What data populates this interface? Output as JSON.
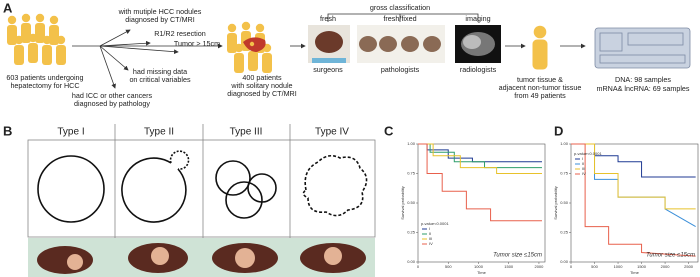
{
  "panel_a": {
    "label": "A",
    "start": [
      "603 patients undergoing",
      "hepatectomy for HCC"
    ],
    "exclusions": [
      [
        "with mutiple HCC nodules",
        "diagnosed by CT/MRI"
      ],
      [
        "R1/R2 resection"
      ],
      [
        "Tumor > 15cm"
      ],
      [
        "had missing data",
        "on critical variables"
      ],
      [
        "had ICC or other cancers",
        "diagnosed by pathology"
      ]
    ],
    "cohort": [
      "400 patients",
      "with solitary nodule",
      "diagnosed by CT/MRI"
    ],
    "classification": "gross classification",
    "sources": [
      {
        "title": "fresh",
        "reader": "surgeons"
      },
      {
        "title": "fresh/fixed",
        "reader": "pathologists"
      },
      {
        "title": "imaging",
        "reader": "radiologists"
      }
    ],
    "tissue": [
      "tumor tissue &",
      "adjacent non-tumor tissue",
      "from 49 patients"
    ],
    "samples": [
      "DNA: 98 samples",
      "mRNA& lncRNA: 69 samples"
    ]
  },
  "panel_b": {
    "label": "B",
    "types": [
      "Type I",
      "Type II",
      "Type III",
      "Type IV"
    ]
  },
  "chart_data": [
    {
      "type": "line",
      "label": "C",
      "ylabel": "Survival probability",
      "xlabel": "Time",
      "annotation": "p-value<0.0001",
      "note": "Tumor size ≤15cm",
      "xlim": [
        0,
        2100
      ],
      "ylim": [
        0,
        1
      ],
      "xticks": [
        0,
        500,
        1000,
        1500,
        2000
      ],
      "yticks": [
        {
          "value": 0,
          "label": "0.00"
        },
        {
          "value": 0.25,
          "label": "0.25"
        },
        {
          "value": 0.5,
          "label": "0.50"
        },
        {
          "value": 0.75,
          "label": "0.75"
        },
        {
          "value": 1,
          "label": "1.00"
        }
      ],
      "series": [
        {
          "name": "I",
          "color": "#1f3a93",
          "x": [
            0,
            150,
            150,
            500,
            500,
            900,
            900,
            2050
          ],
          "values": [
            1,
            1,
            0.95,
            0.95,
            0.88,
            0.88,
            0.85,
            0.85
          ]
        },
        {
          "name": "II",
          "color": "#2e9e6b",
          "x": [
            0,
            200,
            200,
            600,
            600,
            1100,
            1100,
            2050
          ],
          "values": [
            1,
            1,
            0.93,
            0.93,
            0.85,
            0.85,
            0.8,
            0.8
          ]
        },
        {
          "name": "III",
          "color": "#e8c22b",
          "x": [
            0,
            250,
            250,
            700,
            700,
            1300,
            1300,
            2050
          ],
          "values": [
            1,
            1,
            0.9,
            0.9,
            0.8,
            0.8,
            0.75,
            0.75
          ]
        },
        {
          "name": "IV",
          "color": "#e8604c",
          "x": [
            0,
            150,
            150,
            400,
            400,
            800,
            800,
            1200,
            1200,
            2050
          ],
          "values": [
            1,
            1,
            0.75,
            0.75,
            0.6,
            0.6,
            0.45,
            0.45,
            0.35,
            0.35
          ]
        }
      ]
    },
    {
      "type": "line",
      "label": "D",
      "ylabel": "Survival probability",
      "xlabel": "Time",
      "annotation": "p-value<0.0001",
      "note": "Tumor size ≤15cm",
      "xlim": [
        0,
        2700
      ],
      "ylim": [
        0,
        1
      ],
      "xticks": [
        0,
        500,
        1000,
        1500,
        2000,
        2500
      ],
      "yticks": [
        {
          "value": 0,
          "label": "0.00"
        },
        {
          "value": 0.25,
          "label": "0.25"
        },
        {
          "value": 0.5,
          "label": "0.50"
        },
        {
          "value": 0.75,
          "label": "0.75"
        },
        {
          "value": 1,
          "label": "1.00"
        }
      ],
      "series": [
        {
          "name": "I",
          "color": "#1f3a93",
          "x": [
            0,
            500,
            500,
            1000,
            1000,
            1500,
            1500,
            2650
          ],
          "values": [
            1,
            1,
            0.9,
            0.9,
            0.85,
            0.85,
            0.72,
            0.72
          ]
        },
        {
          "name": "II",
          "color": "#3b8fd9",
          "x": [
            0,
            500,
            500,
            1000,
            1000,
            2000,
            2000,
            2650
          ],
          "values": [
            1,
            1,
            0.7,
            0.7,
            0.55,
            0.55,
            0.45,
            0.3
          ]
        },
        {
          "name": "III",
          "color": "#e8c22b",
          "x": [
            0,
            500,
            500,
            1000,
            1000,
            2000,
            2000,
            2650
          ],
          "values": [
            1,
            1,
            0.75,
            0.75,
            0.55,
            0.55,
            0.45,
            0.45
          ]
        },
        {
          "name": "IV",
          "color": "#e8604c",
          "x": [
            0,
            300,
            300,
            800,
            800,
            1500,
            1500,
            2650
          ],
          "values": [
            1,
            1,
            0.3,
            0.3,
            0.15,
            0.15,
            0.08,
            0.05
          ]
        }
      ]
    }
  ]
}
